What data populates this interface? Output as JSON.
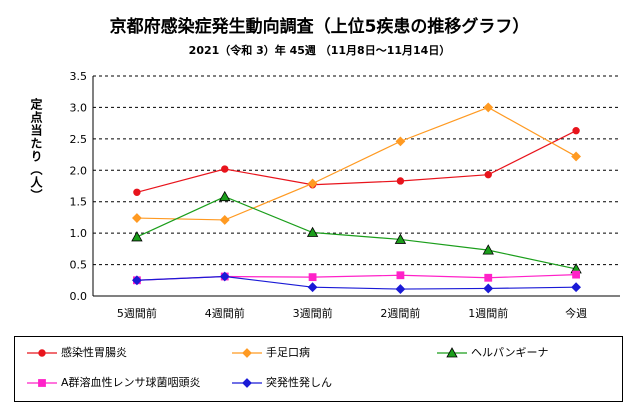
{
  "title": "京都府感染症発生動向調査（上位5疾患の推移グラフ）",
  "subtitle": "2021（令和 3）年  45週  （11月8日～11月14日）",
  "chart_data": {
    "type": "line",
    "title": "京都府感染症発生動向調査（上位5疾患の推移グラフ）",
    "ylabel": "定点当たり（人）",
    "xlabel": "",
    "categories": [
      "5週間前",
      "4週間前",
      "3週間前",
      "2週間前",
      "1週間前",
      "今週"
    ],
    "ylim": [
      0,
      3.5
    ],
    "yticks": [
      "0.0",
      "0.5",
      "1.0",
      "1.5",
      "2.0",
      "2.5",
      "3.0",
      "3.5"
    ],
    "grid": "horizontal dashed",
    "legend_position": "bottom",
    "series": [
      {
        "name": "感染性胃腸炎",
        "color": "#e8141c",
        "marker": "circle",
        "values": [
          1.65,
          2.02,
          1.77,
          1.83,
          1.93,
          2.63
        ]
      },
      {
        "name": "手足口病",
        "color": "#ff9a22",
        "marker": "diamond",
        "values": [
          1.24,
          1.21,
          1.79,
          2.46,
          3.0,
          2.22
        ]
      },
      {
        "name": "ヘルパンギーナ",
        "color": "#1b9e1b",
        "marker": "triangle",
        "values": [
          0.94,
          1.58,
          1.01,
          0.9,
          0.73,
          0.43
        ]
      },
      {
        "name": "A群溶血性レンサ球菌咽頭炎",
        "color": "#ff22c8",
        "marker": "square",
        "values": [
          0.25,
          0.31,
          0.3,
          0.33,
          0.29,
          0.34
        ]
      },
      {
        "name": "突発性発しん",
        "color": "#1a1ad6",
        "marker": "diamond",
        "values": [
          0.25,
          0.31,
          0.14,
          0.11,
          0.12,
          0.14
        ]
      }
    ]
  }
}
